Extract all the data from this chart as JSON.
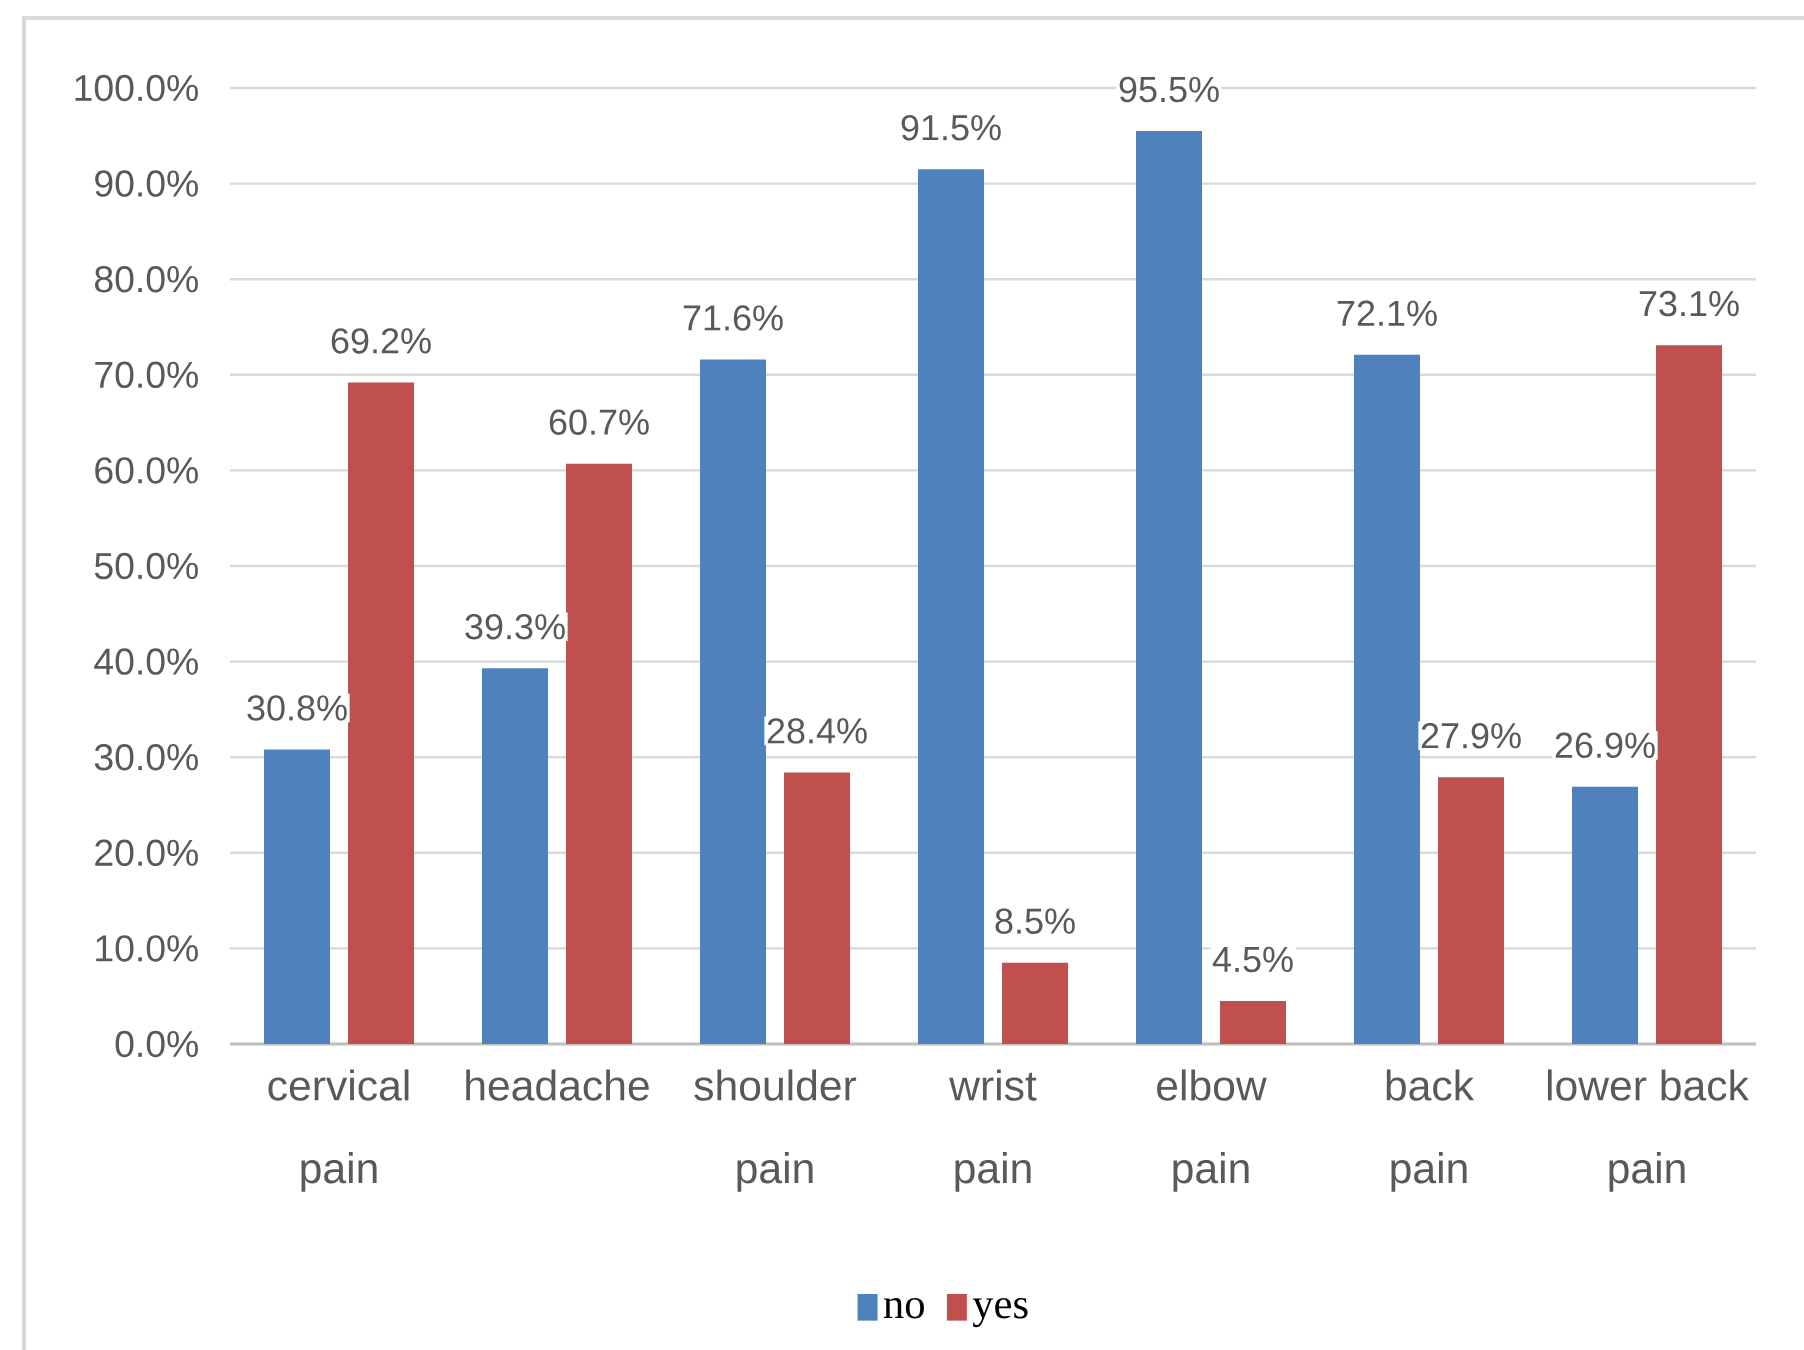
{
  "chart_data": {
    "type": "bar",
    "categories": [
      "cervical pain",
      "headache",
      "shoulder pain",
      "wrist pain",
      "elbow pain",
      "back pain",
      "lower back pain"
    ],
    "series": [
      {
        "name": "no",
        "color": "#4f81bd",
        "values": [
          30.8,
          39.3,
          71.6,
          91.5,
          95.5,
          72.1,
          26.9
        ],
        "value_labels": [
          "30.8%",
          "39.3%",
          "71.6%",
          "91.5%",
          "95.5%",
          "72.1%",
          "26.9%"
        ]
      },
      {
        "name": "yes",
        "color": "#c0504d",
        "values": [
          69.2,
          60.7,
          28.4,
          8.5,
          4.5,
          27.9,
          73.1
        ],
        "value_labels": [
          "69.2%",
          "60.7%",
          "28.4%",
          "8.5%",
          "4.5%",
          "27.9%",
          "73.1%"
        ]
      }
    ],
    "ylim": [
      0,
      100
    ],
    "yticks": [
      {
        "value": 0,
        "label": "0.0%"
      },
      {
        "value": 10,
        "label": "10.0%"
      },
      {
        "value": 20,
        "label": "20.0%"
      },
      {
        "value": 30,
        "label": "30.0%"
      },
      {
        "value": 40,
        "label": "40.0%"
      },
      {
        "value": 50,
        "label": "50.0%"
      },
      {
        "value": 60,
        "label": "60.0%"
      },
      {
        "value": 70,
        "label": "70.0%"
      },
      {
        "value": 80,
        "label": "80.0%"
      },
      {
        "value": 90,
        "label": "90.0%"
      },
      {
        "value": 100,
        "label": "100.0%"
      }
    ],
    "grid": "y",
    "legend": "bottom"
  }
}
